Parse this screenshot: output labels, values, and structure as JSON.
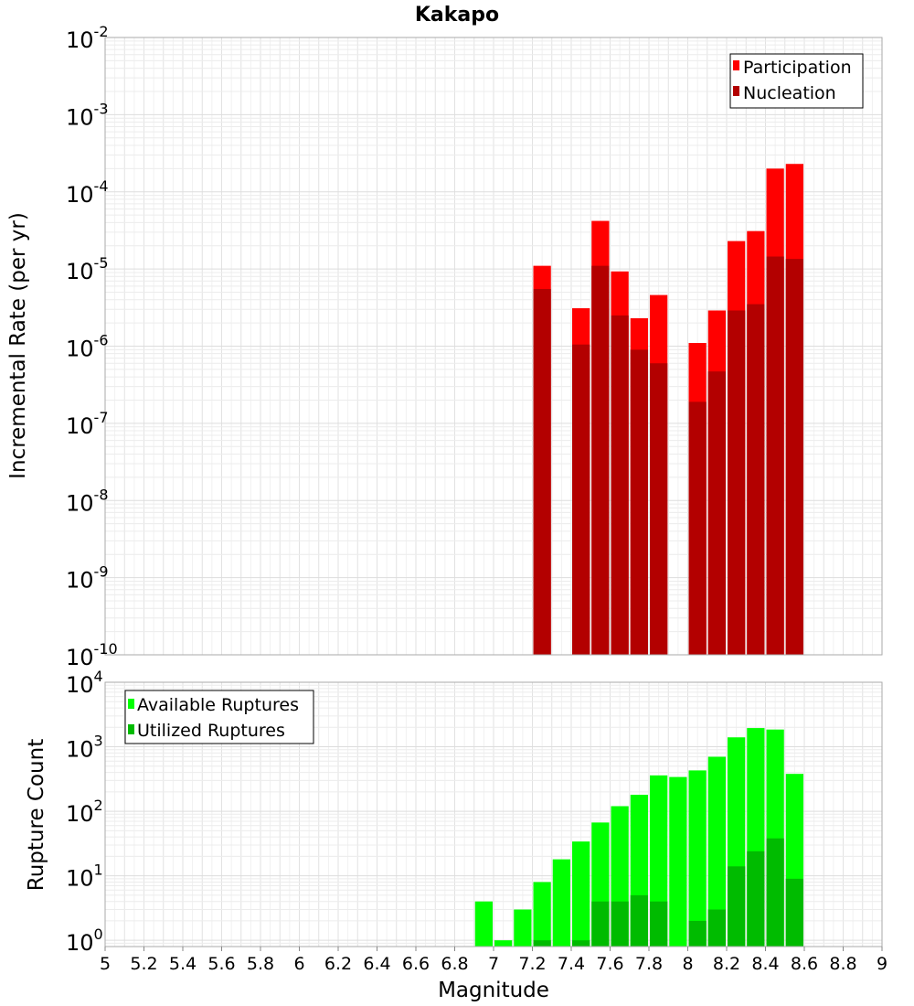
{
  "chart_data": [
    {
      "type": "bar",
      "title": "Kakapo",
      "xlabel": "",
      "ylabel": "Incremental Rate (per yr)",
      "xlim": [
        5,
        9
      ],
      "ylim": [
        1e-10,
        0.01
      ],
      "yscale": "log",
      "grid": true,
      "legend": "top-right",
      "bin_width": 0.1,
      "x": [
        7.25,
        7.45,
        7.55,
        7.65,
        7.75,
        7.85,
        8.05,
        8.15,
        8.25,
        8.35,
        8.45,
        8.55
      ],
      "series": [
        {
          "name": "Participation",
          "color": "#ff0000",
          "values": [
            1.1e-05,
            3.1e-06,
            4.2e-05,
            9.3e-06,
            2.3e-06,
            4.6e-06,
            1.1e-06,
            2.9e-06,
            2.3e-05,
            3.1e-05,
            0.0002,
            0.00023
          ]
        },
        {
          "name": "Nucleation",
          "color": "#b30000",
          "values": [
            5.5e-06,
            1.05e-06,
            1.1e-05,
            2.5e-06,
            9e-07,
            6e-07,
            1.9e-07,
            4.7e-07,
            2.9e-06,
            3.5e-06,
            1.45e-05,
            1.35e-05
          ]
        }
      ]
    },
    {
      "type": "bar",
      "title": "",
      "xlabel": "Magnitude",
      "ylabel": "Rupture Count",
      "xlim": [
        5,
        9
      ],
      "ylim": [
        0.8,
        10000
      ],
      "yscale": "log",
      "grid": true,
      "legend": "top-left",
      "bin_width": 0.1,
      "x": [
        6.95,
        7.05,
        7.15,
        7.25,
        7.35,
        7.45,
        7.55,
        7.65,
        7.75,
        7.85,
        7.95,
        8.05,
        8.15,
        8.25,
        8.35,
        8.45,
        8.55
      ],
      "series": [
        {
          "name": "Available Ruptures",
          "color": "#00ff00",
          "values": [
            4,
            1,
            3,
            8,
            18,
            34,
            67,
            120,
            180,
            360,
            340,
            430,
            700,
            1400,
            1950,
            1850,
            380
          ]
        },
        {
          "name": "Utilized Ruptures",
          "color": "#00bb00",
          "values": [
            0,
            0,
            0,
            1,
            0,
            1,
            4,
            4,
            5,
            4,
            0,
            2,
            3,
            14,
            24,
            38,
            9
          ]
        }
      ],
      "xticks": [
        "5",
        "5.2",
        "5.4",
        "5.6",
        "5.8",
        "6",
        "6.2",
        "6.4",
        "6.6",
        "6.8",
        "7",
        "7.2",
        "7.4",
        "7.6",
        "7.8",
        "8",
        "8.2",
        "8.4",
        "8.6",
        "8.8",
        "9"
      ]
    }
  ],
  "top": {
    "yticks": [
      {
        "base": "10",
        "exp": "-10"
      },
      {
        "base": "10",
        "exp": "-9"
      },
      {
        "base": "10",
        "exp": "-8"
      },
      {
        "base": "10",
        "exp": "-7"
      },
      {
        "base": "10",
        "exp": "-6"
      },
      {
        "base": "10",
        "exp": "-5"
      },
      {
        "base": "10",
        "exp": "-4"
      },
      {
        "base": "10",
        "exp": "-3"
      },
      {
        "base": "10",
        "exp": "-2"
      }
    ]
  },
  "bottom": {
    "yticks": [
      {
        "base": "10",
        "exp": "0"
      },
      {
        "base": "10",
        "exp": "1"
      },
      {
        "base": "10",
        "exp": "2"
      },
      {
        "base": "10",
        "exp": "3"
      },
      {
        "base": "10",
        "exp": "4"
      }
    ]
  }
}
